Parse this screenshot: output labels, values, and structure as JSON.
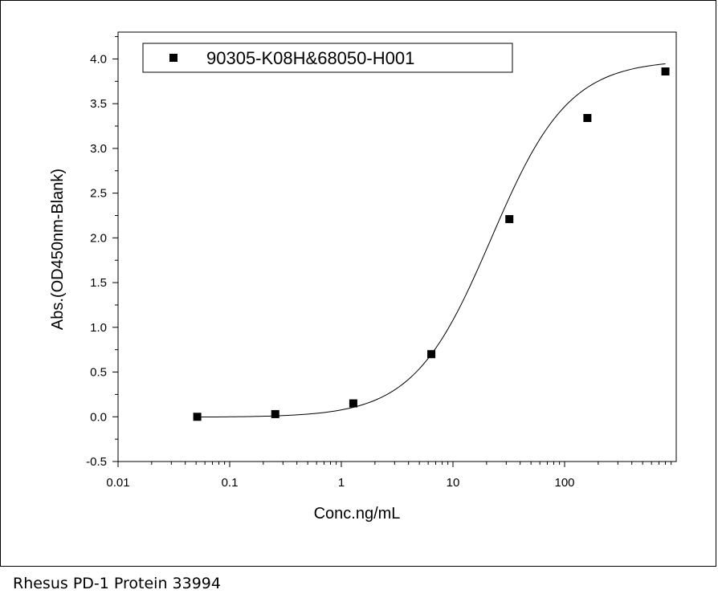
{
  "caption": "Rhesus PD-1 Protein 33994",
  "chart_data": {
    "type": "scatter",
    "xlabel": "Conc.ng/mL",
    "ylabel": "Abs.(OD450nm-Blank)",
    "xscale": "log",
    "xlim": [
      0.01,
      1000
    ],
    "ylim": [
      -0.5,
      4.3
    ],
    "x_ticks": [
      {
        "value": 0.01,
        "label": "0.01"
      },
      {
        "value": 0.1,
        "label": "0.1"
      },
      {
        "value": 1,
        "label": "1"
      },
      {
        "value": 10,
        "label": "10"
      },
      {
        "value": 100,
        "label": "100"
      }
    ],
    "y_ticks": [
      {
        "value": -0.5,
        "label": "-0.5"
      },
      {
        "value": 0.0,
        "label": "0.0"
      },
      {
        "value": 0.5,
        "label": "0.5"
      },
      {
        "value": 1.0,
        "label": "1.0"
      },
      {
        "value": 1.5,
        "label": "1.5"
      },
      {
        "value": 2.0,
        "label": "2.0"
      },
      {
        "value": 2.5,
        "label": "2.5"
      },
      {
        "value": 3.0,
        "label": "3.0"
      },
      {
        "value": 3.5,
        "label": "3.5"
      },
      {
        "value": 4.0,
        "label": "4.0"
      }
    ],
    "legend_position": "top",
    "grid": false,
    "series": [
      {
        "name": "90305-K08H&68050-H001",
        "marker": "square",
        "color": "#000000",
        "x": [
          0.0512,
          0.256,
          1.28,
          6.4,
          32,
          160,
          800
        ],
        "y": [
          0.0,
          0.03,
          0.15,
          0.7,
          2.21,
          3.34,
          3.86
        ]
      }
    ],
    "fit_curve": {
      "type": "4PL",
      "bottom": -0.005,
      "top": 3.99,
      "ec50": 22,
      "hill": 1.25
    }
  }
}
